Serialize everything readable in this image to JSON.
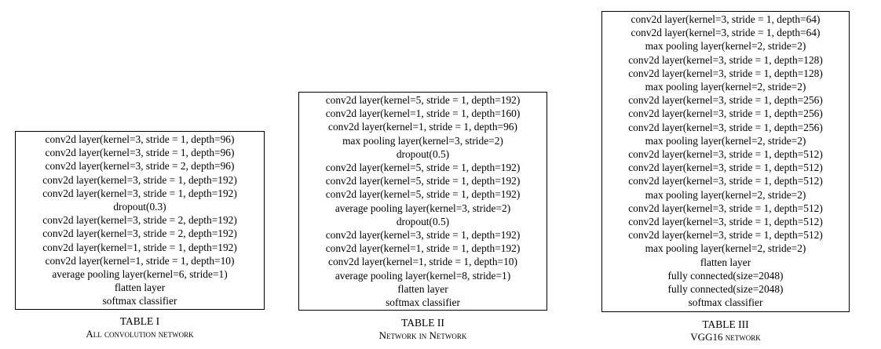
{
  "tables": [
    {
      "label": "TABLE I",
      "title": "All convolution network",
      "rows": [
        "conv2d layer(kernel=3, stride = 1, depth=96)",
        "conv2d layer(kernel=3, stride = 1, depth=96)",
        "conv2d layer(kernel=3, stride = 2, depth=96)",
        "conv2d layer(kernel=3, stride = 1, depth=192)",
        "conv2d layer(kernel=3, stride = 1, depth=192)",
        "dropout(0.3)",
        "conv2d layer(kernel=3, stride = 2, depth=192)",
        "conv2d layer(kernel=3, stride = 2, depth=192)",
        "conv2d layer(kernel=1, stride = 1, depth=192)",
        "conv2d layer(kernel=1, stride = 1, depth=10)",
        "average pooling layer(kernel=6, stride=1)",
        "flatten layer",
        "softmax classifier"
      ]
    },
    {
      "label": "TABLE II",
      "title": "Network in Network",
      "rows": [
        "conv2d layer(kernel=5, stride = 1, depth=192)",
        "conv2d layer(kernel=1, stride = 1, depth=160)",
        "conv2d layer(kernel=1, stride = 1, depth=96)",
        "max pooling layer(kernel=3, stride=2)",
        "dropout(0.5)",
        "conv2d layer(kernel=5, stride = 1, depth=192)",
        "conv2d layer(kernel=5, stride = 1, depth=192)",
        "conv2d layer(kernel=5, stride = 1, depth=192)",
        "average pooling layer(kernel=3, stride=2)",
        "dropout(0.5)",
        "conv2d layer(kernel=3, stride = 1, depth=192)",
        "conv2d layer(kernel=1, stride = 1, depth=192)",
        "conv2d layer(kernel=1, stride = 1, depth=10)",
        "average pooling layer(kernel=8, stride=1)",
        "flatten layer",
        "softmax classifier"
      ]
    },
    {
      "label": "TABLE III",
      "title": "VGG16 network",
      "rows": [
        "conv2d layer(kernel=3, stride = 1, depth=64)",
        "conv2d layer(kernel=3, stride = 1, depth=64)",
        "max pooling layer(kernel=2, stride=2)",
        "conv2d layer(kernel=3, stride = 1, depth=128)",
        "conv2d layer(kernel=3, stride = 1, depth=128)",
        "max pooling layer(kernel=2, stride=2)",
        "conv2d layer(kernel=3, stride = 1, depth=256)",
        "conv2d layer(kernel=3, stride = 1, depth=256)",
        "conv2d layer(kernel=3, stride = 1, depth=256)",
        "max pooling layer(kernel=2, stride=2)",
        "conv2d layer(kernel=3, stride = 1, depth=512)",
        "conv2d layer(kernel=3, stride = 1, depth=512)",
        "conv2d layer(kernel=3, stride = 1, depth=512)",
        "max pooling layer(kernel=2, stride=2)",
        "conv2d layer(kernel=3, stride = 1, depth=512)",
        "conv2d layer(kernel=3, stride = 1, depth=512)",
        "conv2d layer(kernel=3, stride = 1, depth=512)",
        "max pooling layer(kernel=2, stride=2)",
        "flatten layer",
        "fully connected(size=2048)",
        "fully connected(size=2048)",
        "softmax classifier"
      ]
    }
  ]
}
